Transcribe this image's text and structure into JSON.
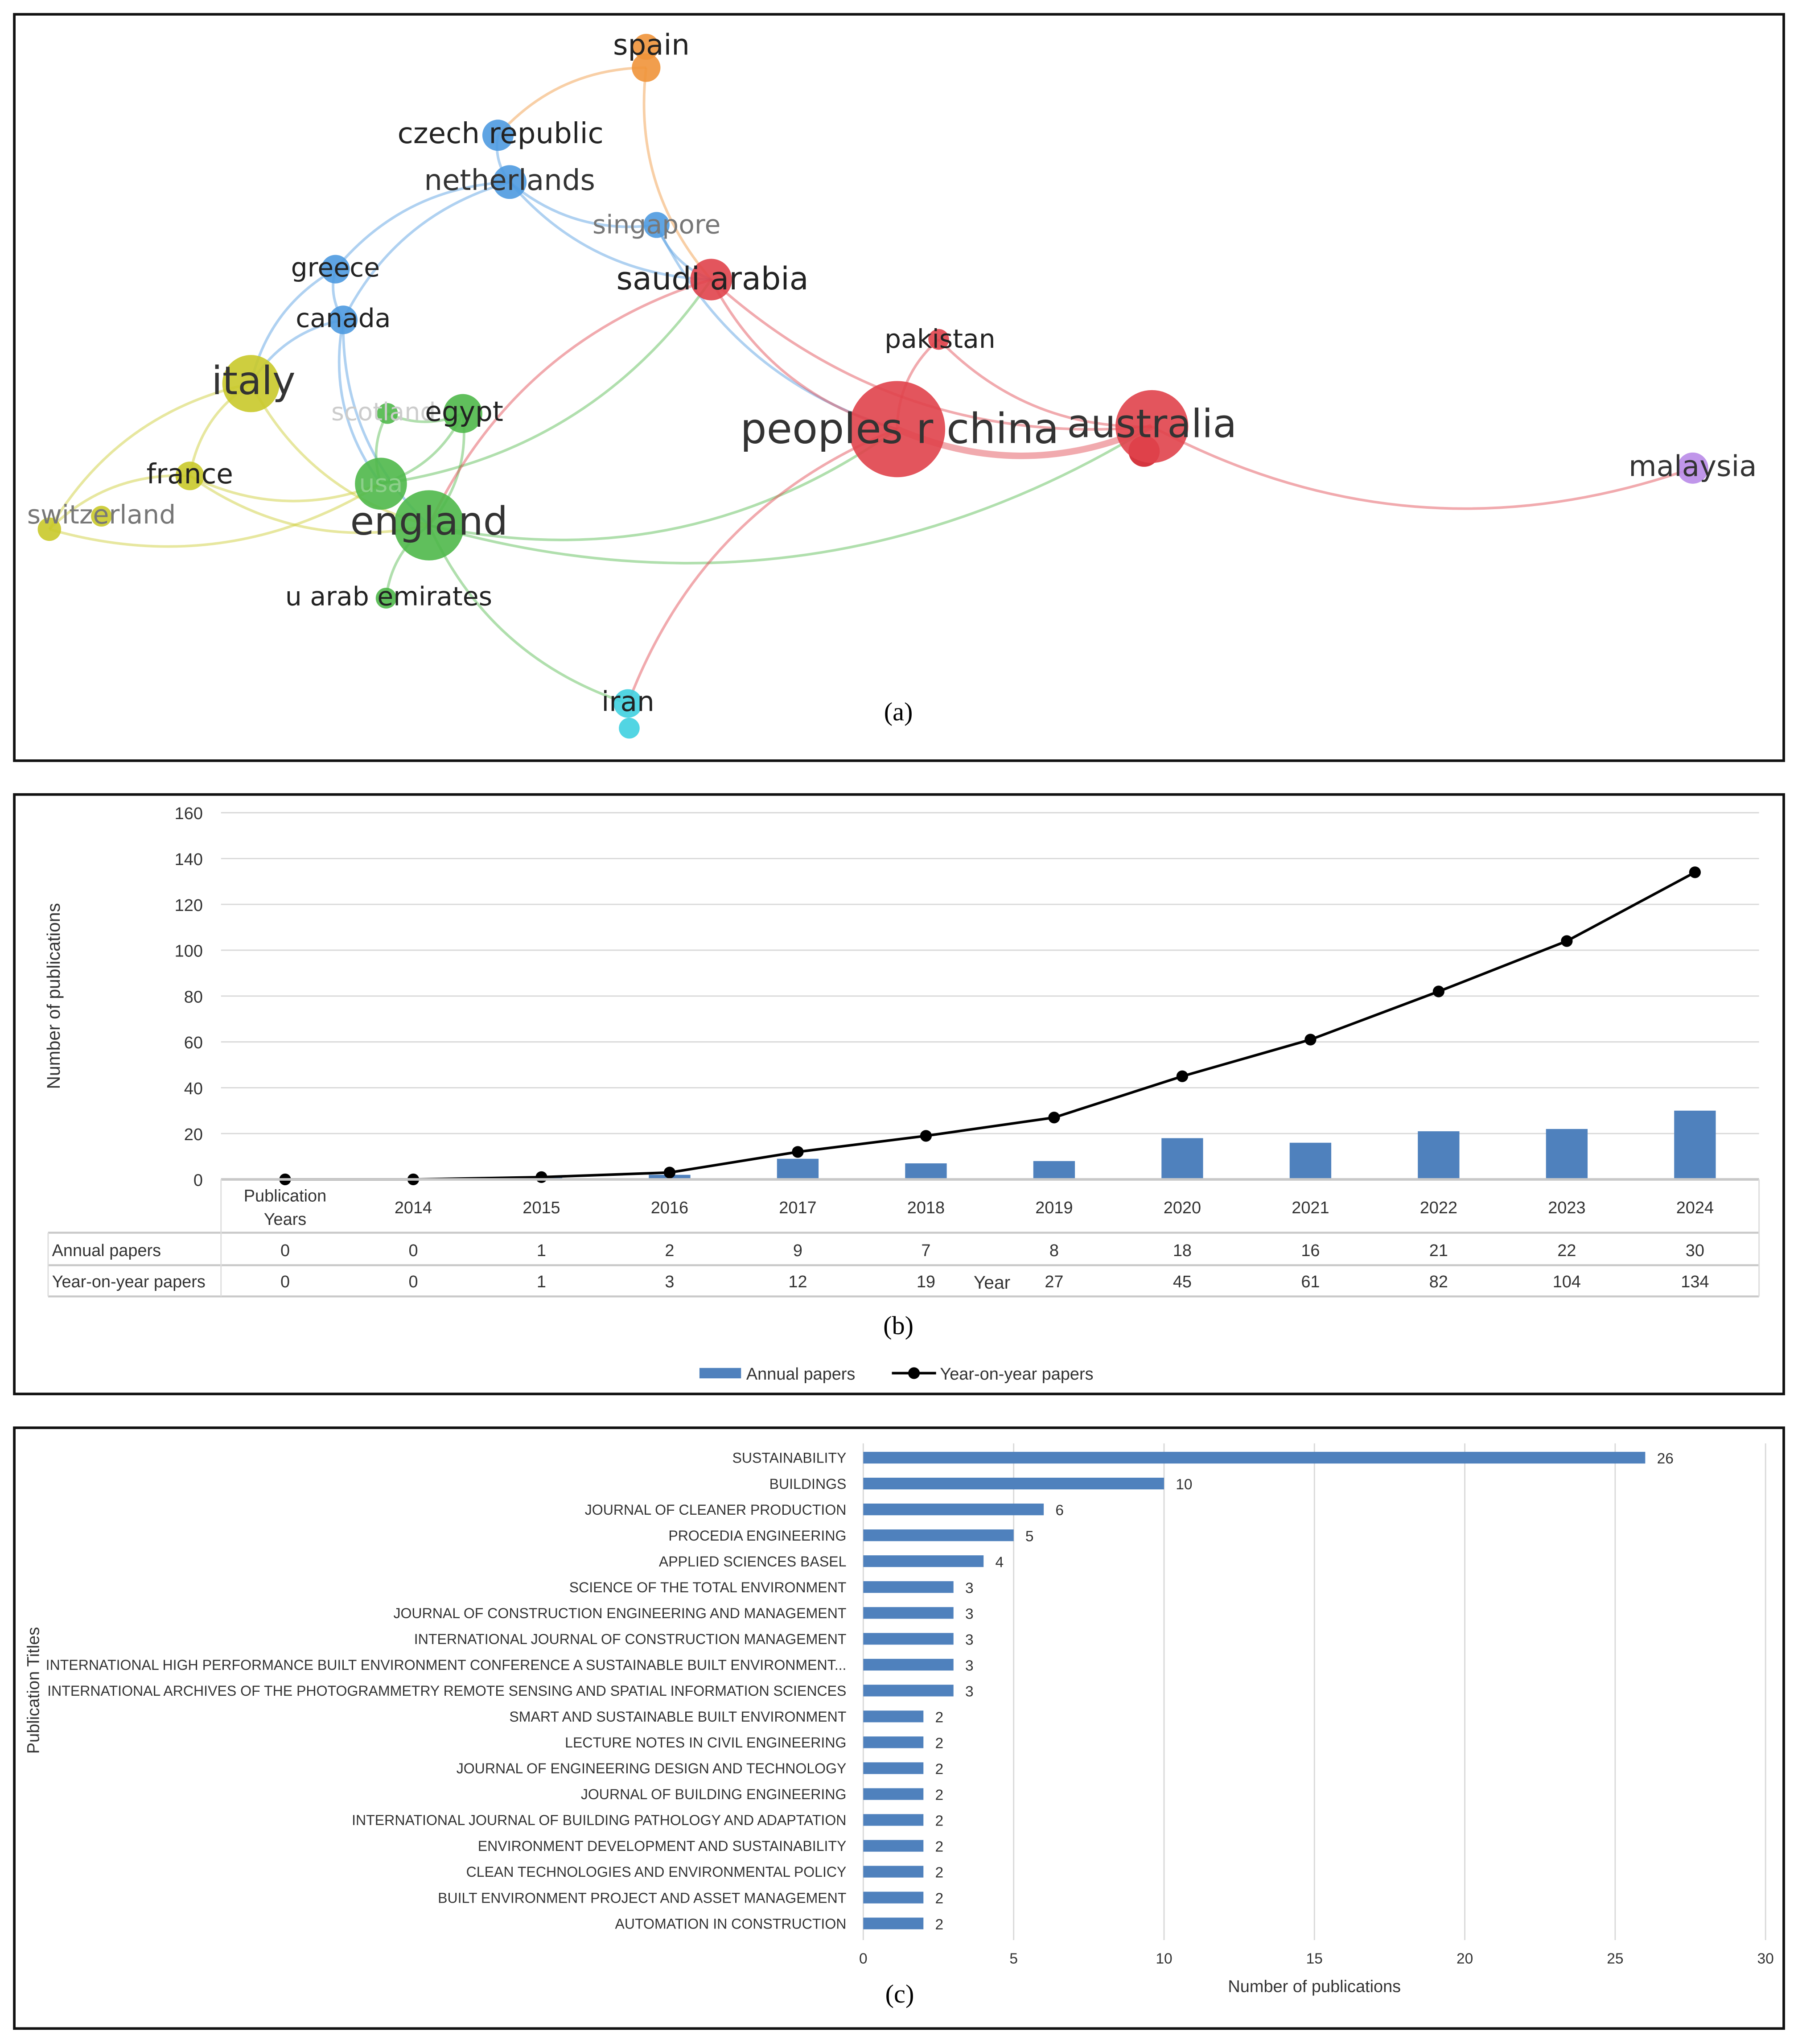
{
  "panel_a": {
    "caption": "(a)",
    "colors": {
      "red": "#e0434b",
      "blue": "#4e9ae0",
      "green": "#4fb84a",
      "yellow": "#c9c92a",
      "orange": "#f0943a",
      "purple": "#b98be8",
      "cyan": "#3fd0e0"
    },
    "nodes": [
      {
        "id": "spain",
        "label": "spain",
        "cluster": "orange"
      },
      {
        "id": "czech",
        "label": "czech republic",
        "cluster": "blue"
      },
      {
        "id": "netherlands",
        "label": "netherlands",
        "cluster": "blue"
      },
      {
        "id": "singapore",
        "label": "singapore",
        "cluster": "blue"
      },
      {
        "id": "greece",
        "label": "greece",
        "cluster": "blue"
      },
      {
        "id": "canada",
        "label": "canada",
        "cluster": "blue"
      },
      {
        "id": "saudi",
        "label": "saudi arabia",
        "cluster": "red"
      },
      {
        "id": "pakistan",
        "label": "pakistan",
        "cluster": "red"
      },
      {
        "id": "china",
        "label": "peoples r china",
        "cluster": "red"
      },
      {
        "id": "australia",
        "label": "australia",
        "cluster": "red"
      },
      {
        "id": "malaysia",
        "label": "malaysia",
        "cluster": "purple"
      },
      {
        "id": "italy",
        "label": "italy",
        "cluster": "yellow"
      },
      {
        "id": "france",
        "label": "france",
        "cluster": "yellow"
      },
      {
        "id": "switzerland",
        "label": "switzerland",
        "cluster": "yellow"
      },
      {
        "id": "scotland",
        "label": "scotland",
        "cluster": "green"
      },
      {
        "id": "egypt",
        "label": "egypt",
        "cluster": "green"
      },
      {
        "id": "usa",
        "label": "usa",
        "cluster": "green"
      },
      {
        "id": "england",
        "label": "england",
        "cluster": "green"
      },
      {
        "id": "uae",
        "label": "u arab emirates",
        "cluster": "green"
      },
      {
        "id": "iran",
        "label": "iran",
        "cluster": "cyan"
      }
    ],
    "links": [
      [
        "spain",
        "czech"
      ],
      [
        "spain",
        "saudi"
      ],
      [
        "czech",
        "netherlands"
      ],
      [
        "netherlands",
        "singapore"
      ],
      [
        "netherlands",
        "greece"
      ],
      [
        "netherlands",
        "canada"
      ],
      [
        "netherlands",
        "saudi"
      ],
      [
        "singapore",
        "china"
      ],
      [
        "greece",
        "italy"
      ],
      [
        "greece",
        "canada"
      ],
      [
        "canada",
        "usa"
      ],
      [
        "canada",
        "england"
      ],
      [
        "canada",
        "italy"
      ],
      [
        "italy",
        "france"
      ],
      [
        "italy",
        "switzerland"
      ],
      [
        "italy",
        "england"
      ],
      [
        "france",
        "switzerland"
      ],
      [
        "france",
        "usa"
      ],
      [
        "france",
        "england"
      ],
      [
        "switzerland",
        "usa"
      ],
      [
        "usa",
        "egypt"
      ],
      [
        "usa",
        "saudi"
      ],
      [
        "england",
        "egypt"
      ],
      [
        "england",
        "uae"
      ],
      [
        "england",
        "iran"
      ],
      [
        "england",
        "china"
      ],
      [
        "england",
        "australia"
      ],
      [
        "saudi",
        "china"
      ],
      [
        "saudi",
        "australia"
      ],
      [
        "saudi",
        "england"
      ],
      [
        "pakistan",
        "china"
      ],
      [
        "pakistan",
        "australia"
      ],
      [
        "china",
        "australia"
      ],
      [
        "china",
        "iran"
      ],
      [
        "australia",
        "malaysia"
      ],
      [
        "scotland",
        "usa"
      ],
      [
        "scotland",
        "egypt"
      ],
      [
        "singapore",
        "saudi"
      ]
    ]
  },
  "chart_data": [
    {
      "type": "bar+line",
      "caption": "(b)",
      "ylabel": "Number of publications",
      "xlabel": "Year",
      "ylim": [
        0,
        160
      ],
      "yticks": [
        0,
        20,
        40,
        60,
        80,
        100,
        120,
        140,
        160
      ],
      "grid": true,
      "legend_placement": "bottom",
      "table_header": "Publication Years",
      "categories": [
        "",
        "2014",
        "2015",
        "2016",
        "2017",
        "2018",
        "2019",
        "2020",
        "2021",
        "2022",
        "2023",
        "2024"
      ],
      "series": [
        {
          "name": "Annual papers",
          "type": "bar",
          "color": "#4f81bd",
          "values": [
            0,
            0,
            1,
            2,
            9,
            7,
            8,
            18,
            16,
            21,
            22,
            30
          ]
        },
        {
          "name": "Year-on-year papers",
          "type": "line",
          "color": "#000000",
          "values": [
            0,
            0,
            1,
            3,
            12,
            19,
            27,
            45,
            61,
            82,
            104,
            134
          ]
        }
      ]
    },
    {
      "type": "bar",
      "orientation": "horizontal",
      "caption": "(c)",
      "ylabel": "Publication Titles",
      "xlabel": "Number of publications",
      "xlim": [
        0,
        30
      ],
      "xticks": [
        0,
        5,
        10,
        15,
        20,
        25,
        30
      ],
      "grid": true,
      "color": "#4f81bd",
      "categories": [
        "SUSTAINABILITY",
        "BUILDINGS",
        "JOURNAL OF CLEANER PRODUCTION",
        "PROCEDIA ENGINEERING",
        "APPLIED SCIENCES BASEL",
        "SCIENCE OF THE TOTAL ENVIRONMENT",
        "JOURNAL OF CONSTRUCTION ENGINEERING AND MANAGEMENT",
        "INTERNATIONAL JOURNAL OF CONSTRUCTION MANAGEMENT",
        "INTERNATIONAL HIGH PERFORMANCE BUILT ENVIRONMENT CONFERENCE A SUSTAINABLE BUILT ENVIRONMENT...",
        "INTERNATIONAL ARCHIVES OF THE PHOTOGRAMMETRY REMOTE SENSING AND SPATIAL INFORMATION SCIENCES",
        "SMART AND SUSTAINABLE BUILT ENVIRONMENT",
        "LECTURE NOTES IN CIVIL ENGINEERING",
        "JOURNAL OF ENGINEERING DESIGN AND TECHNOLOGY",
        "JOURNAL OF BUILDING ENGINEERING",
        "INTERNATIONAL JOURNAL OF BUILDING PATHOLOGY AND ADAPTATION",
        "ENVIRONMENT DEVELOPMENT AND SUSTAINABILITY",
        "CLEAN TECHNOLOGIES AND ENVIRONMENTAL POLICY",
        "BUILT ENVIRONMENT PROJECT AND ASSET MANAGEMENT",
        "AUTOMATION IN CONSTRUCTION"
      ],
      "values": [
        26,
        10,
        6,
        5,
        4,
        3,
        3,
        3,
        3,
        3,
        2,
        2,
        2,
        2,
        2,
        2,
        2,
        2,
        2
      ]
    }
  ]
}
